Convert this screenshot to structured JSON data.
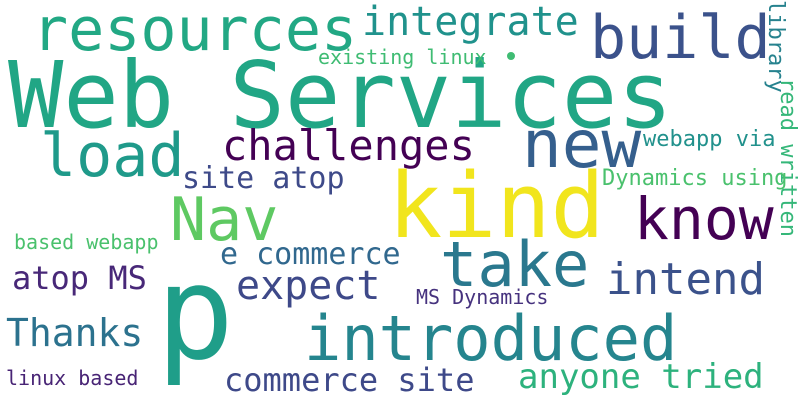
{
  "words": [
    {
      "text": "Web Services",
      "color": "#21a685"
    },
    {
      "text": "resources",
      "color": "#22a884"
    },
    {
      "text": "integrate",
      "color": "#20928c"
    },
    {
      "text": "build",
      "color": "#3b528b"
    },
    {
      "text": "library",
      "color": "#26828e"
    },
    {
      "text": "existing linux",
      "color": "#3fbc73"
    },
    {
      "text": "read written",
      "color": "#35b779"
    },
    {
      "text": "load",
      "color": "#1f9a8a"
    },
    {
      "text": "challenges",
      "color": "#440154"
    },
    {
      "text": "new",
      "color": "#355f8d"
    },
    {
      "text": "webapp via",
      "color": "#21918c"
    },
    {
      "text": "site atop",
      "color": "#3e4a89"
    },
    {
      "text": "kind",
      "color": "#f1e51d"
    },
    {
      "text": "Dynamics using",
      "color": "#4ac16d"
    },
    {
      "text": "Nav",
      "color": "#5ec962"
    },
    {
      "text": "know",
      "color": "#440154"
    },
    {
      "text": "based webapp",
      "color": "#4ac16d"
    },
    {
      "text": "e commerce",
      "color": "#31688e"
    },
    {
      "text": "take",
      "color": "#2a788e"
    },
    {
      "text": "atop MS",
      "color": "#482878"
    },
    {
      "text": "expect",
      "color": "#3e4989"
    },
    {
      "text": "intend",
      "color": "#3b528b"
    },
    {
      "text": "MS Dynamics",
      "color": "#46327e"
    },
    {
      "text": "p",
      "color": "#1f9e89"
    },
    {
      "text": "Thanks",
      "color": "#2c728e"
    },
    {
      "text": "introduced",
      "color": "#25858e"
    },
    {
      "text": "linux based",
      "color": "#482475"
    },
    {
      "text": "commerce site",
      "color": "#3e4989"
    },
    {
      "text": "anyone tried",
      "color": "#2db27d"
    }
  ],
  "dot": {
    "color": "#3fbc73"
  }
}
